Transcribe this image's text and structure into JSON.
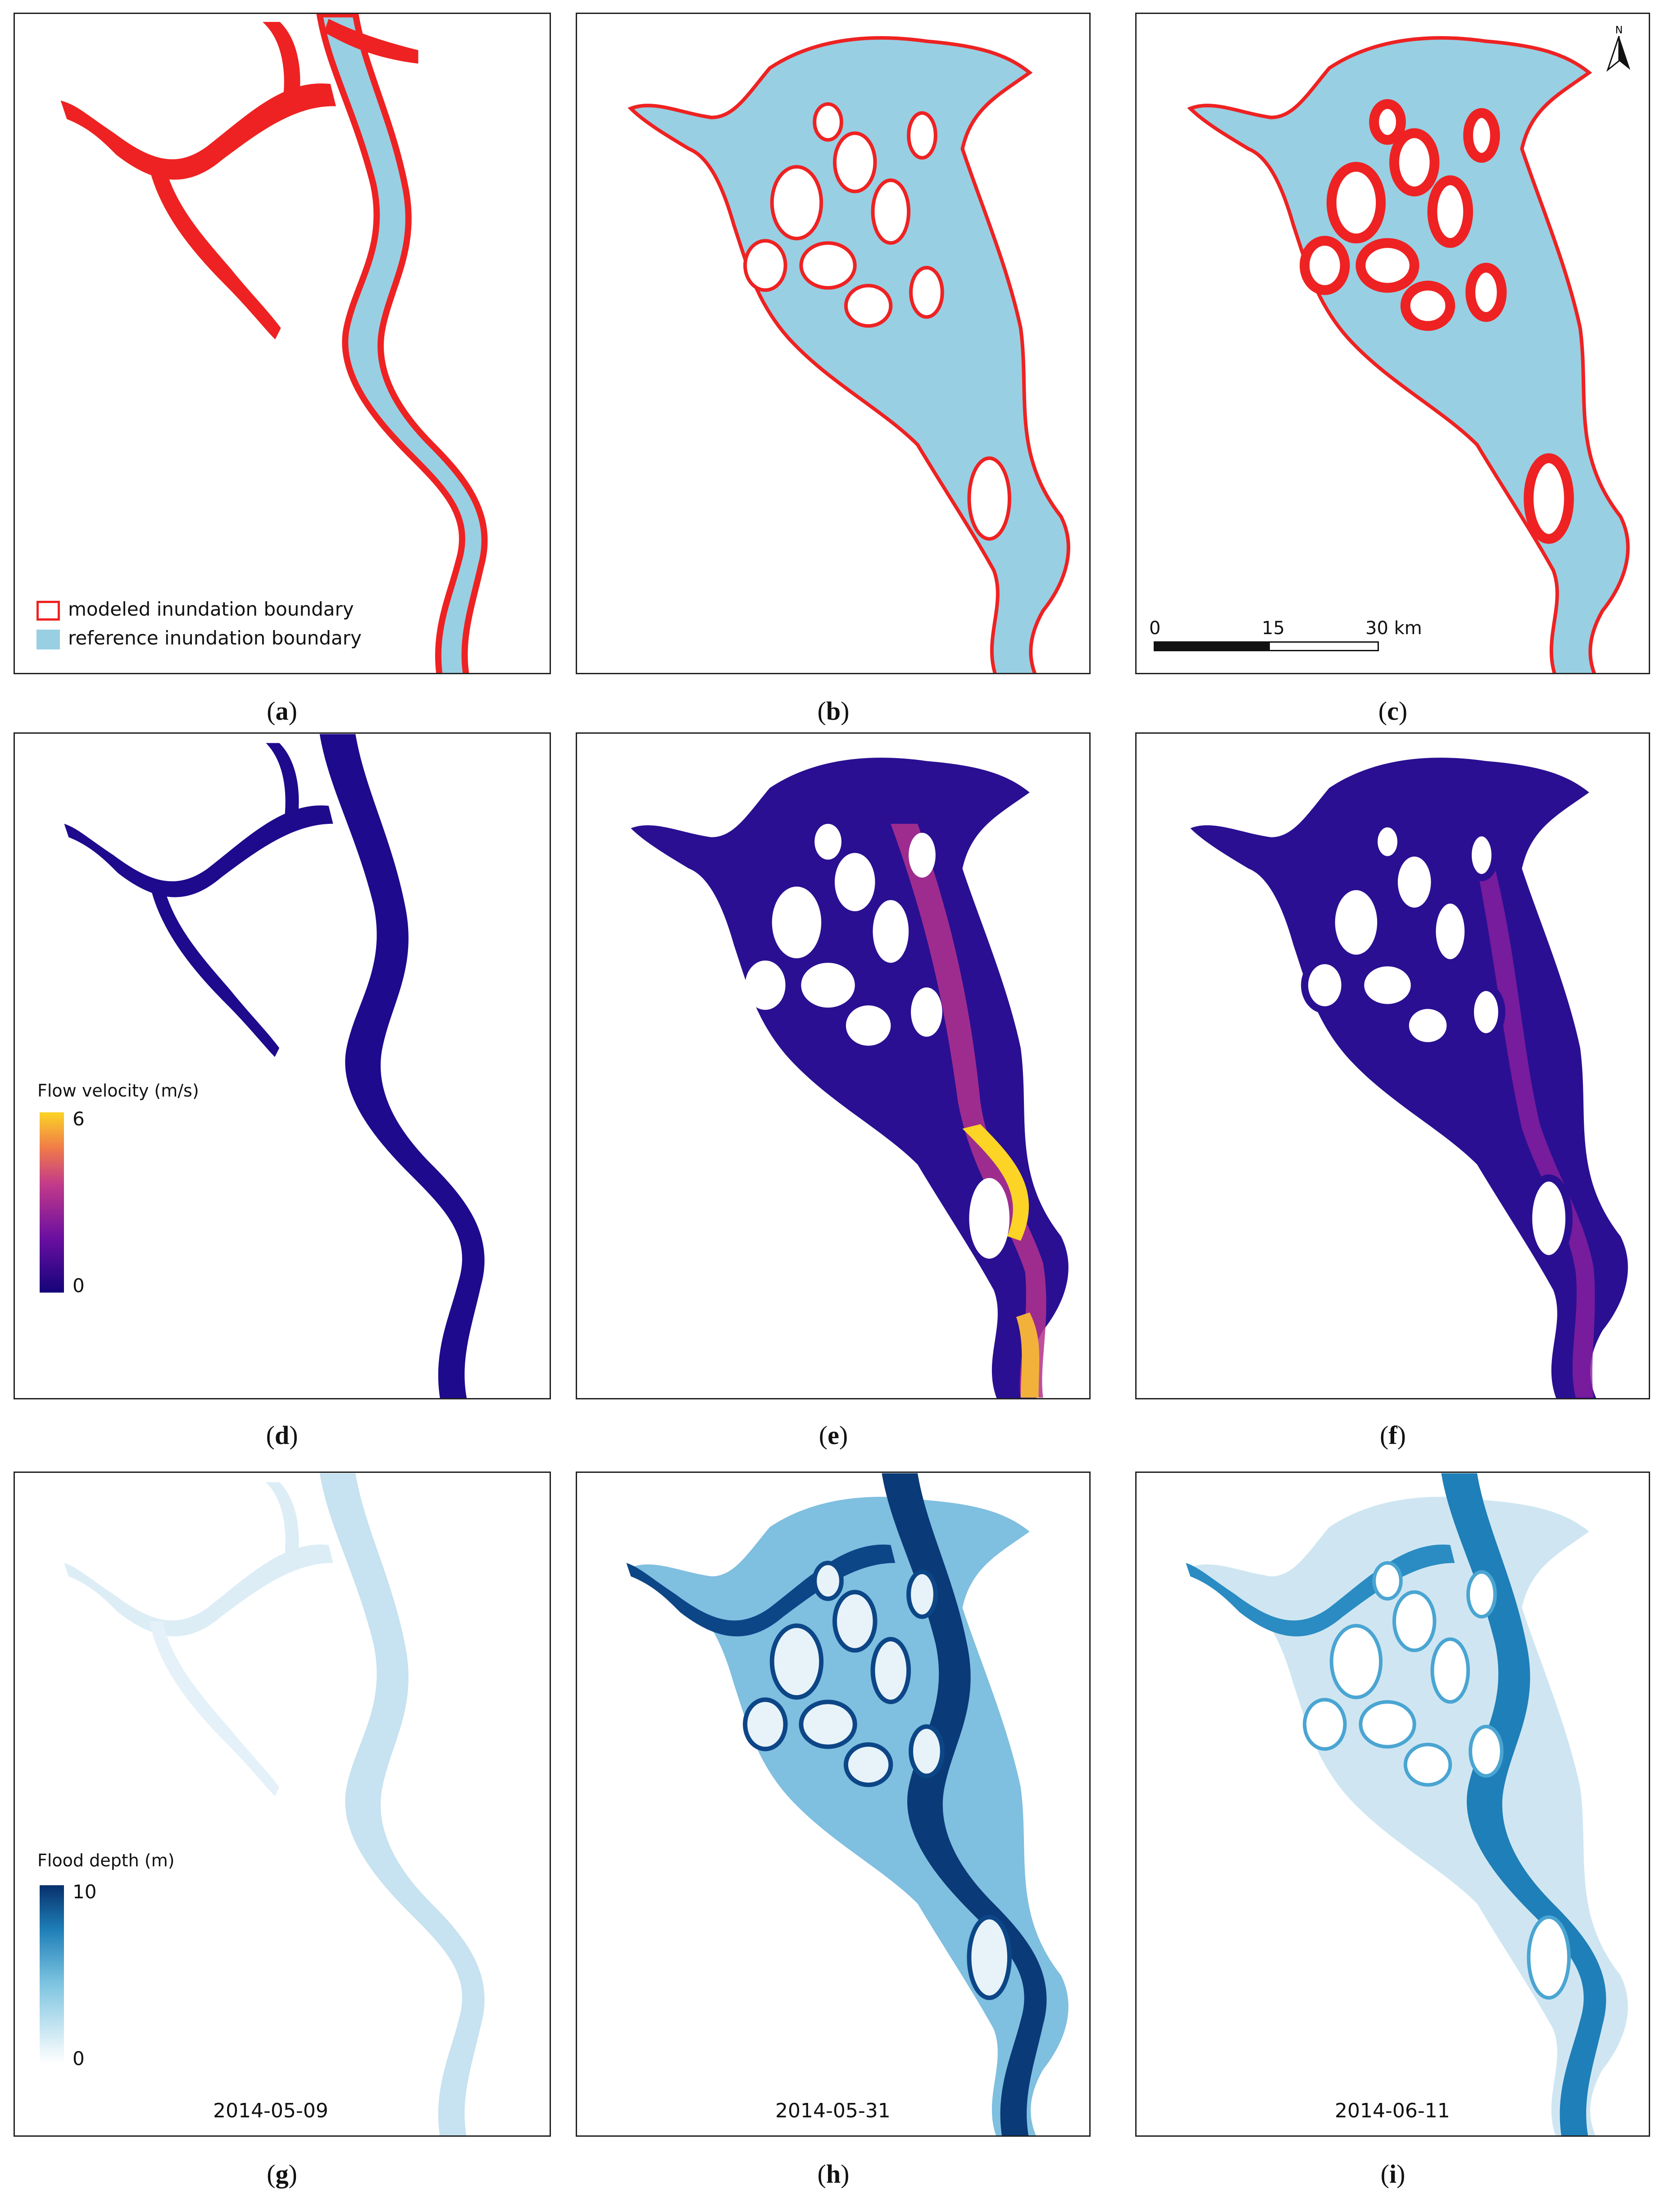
{
  "captions": [
    "a",
    "b",
    "c",
    "d",
    "e",
    "f",
    "g",
    "h",
    "i"
  ],
  "legend_boundary": {
    "modeled_label": "modeled inundation boundary",
    "reference_label": "reference inundation boundary",
    "modeled_color": "#ee2222",
    "reference_color": "#98cfe3"
  },
  "scale_bar": {
    "tick_labels": [
      "0",
      "15",
      "30 km"
    ]
  },
  "north_arrow": {
    "label": "N",
    "icon": "north-arrow-icon"
  },
  "velocity_legend": {
    "title": "Flow velocity (m/s)",
    "max_label": "6",
    "min_label": "0",
    "colors": [
      "#14047a",
      "#6a0fa0",
      "#c23a8a",
      "#f07a4a",
      "#fbd425"
    ]
  },
  "depth_legend": {
    "title": "Flood depth (m)",
    "max_label": "10",
    "min_label": "0",
    "colors": [
      "#ffffff",
      "#7dc4e0",
      "#1f7fb8",
      "#08306b"
    ]
  },
  "dates": [
    "2014-05-09",
    "2014-05-31",
    "2014-06-11"
  ]
}
